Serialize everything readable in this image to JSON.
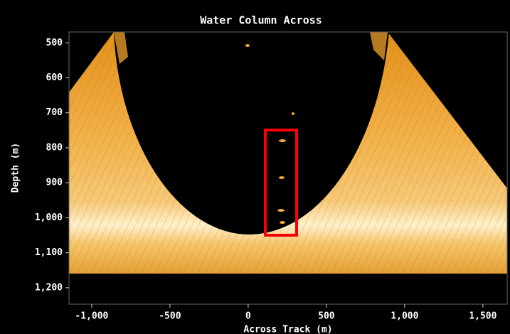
{
  "chart_data": {
    "type": "image",
    "title": "Water Column Across",
    "x_label": "Across Track (m)",
    "y_label": "Depth (m)",
    "xlim": [
      -1145,
      1655
    ],
    "ylim": [
      469,
      1247
    ],
    "y_inverted": true,
    "xticks": [
      {
        "value": -1000,
        "label": "-1,000"
      },
      -500,
      0,
      500,
      {
        "value": 1000,
        "label": "1,000"
      },
      {
        "value": 1500,
        "label": "1,500"
      }
    ],
    "yticks": [
      500,
      600,
      700,
      800,
      900,
      {
        "value": 1000,
        "label": "1,000"
      },
      {
        "value": 1100,
        "label": "1,100"
      },
      {
        "value": 1200,
        "label": "1,200"
      }
    ]
  }
}
